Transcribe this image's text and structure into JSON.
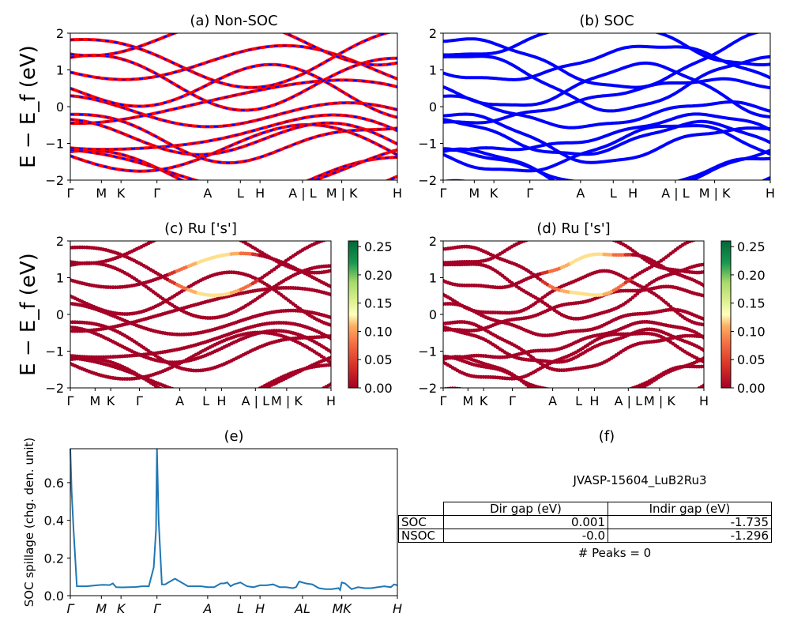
{
  "kpath_labels": [
    "Γ",
    "M",
    "K",
    "Γ",
    "A",
    "L",
    "H",
    "A | L",
    "M | K",
    "H"
  ],
  "kpath_positions": [
    0,
    0.095,
    0.155,
    0.265,
    0.42,
    0.52,
    0.58,
    0.71,
    0.83,
    1.0
  ],
  "panels": [
    {
      "id": "a",
      "title": "(a) Non-SOC",
      "ylabel": "E − E_f (eV)",
      "ylim": [
        -2,
        2
      ],
      "yticks": [
        "−2",
        "−1",
        "0",
        "1",
        "2"
      ]
    },
    {
      "id": "b",
      "title": "(b) SOC",
      "ylim": [
        -2,
        2
      ],
      "yticks": [
        "−2",
        "−1",
        "0",
        "1",
        "2"
      ]
    },
    {
      "id": "c",
      "title": "(c)  Ru ['s']",
      "ylabel": "E − E_f (eV)",
      "ylim": [
        -2,
        2
      ],
      "yticks": [
        "−2",
        "−1",
        "0",
        "1",
        "2"
      ],
      "colorbar": {
        "ticks": [
          "0.00",
          "0.05",
          "0.10",
          "0.15",
          "0.20",
          "0.25"
        ],
        "range": [
          0,
          0.26
        ]
      }
    },
    {
      "id": "d",
      "title": "(d) Ru ['s']",
      "ylim": [
        -2,
        2
      ],
      "yticks": [
        "−2",
        "−1",
        "0",
        "1",
        "2"
      ],
      "colorbar": {
        "ticks": [
          "0.00",
          "0.05",
          "0.10",
          "0.15",
          "0.20",
          "0.25"
        ],
        "range": [
          0,
          0.26
        ]
      }
    }
  ],
  "colors": {
    "nonsoc_line": "#ff0000",
    "nonsoc_dash": "#0000ff",
    "soc_line": "#0000ff",
    "spillage": "#1f77b4"
  },
  "chart_data": [
    {
      "type": "line",
      "id": "e",
      "title": "(e)",
      "ylabel": "SOC spillage (chg. den. unit)",
      "ylim": [
        0,
        0.78
      ],
      "yticks": [
        "0.0",
        "0.2",
        "0.4",
        "0.6"
      ],
      "xticks": [
        "Γ",
        "M",
        "K",
        "Γ",
        "A",
        "L",
        "H",
        "AL",
        "MK",
        "H"
      ],
      "x": [
        0,
        0.004,
        0.01,
        0.02,
        0.05,
        0.08,
        0.1,
        0.12,
        0.13,
        0.14,
        0.16,
        0.2,
        0.22,
        0.24,
        0.255,
        0.262,
        0.265,
        0.27,
        0.28,
        0.29,
        0.3,
        0.32,
        0.36,
        0.4,
        0.42,
        0.44,
        0.46,
        0.47,
        0.48,
        0.49,
        0.5,
        0.52,
        0.54,
        0.56,
        0.58,
        0.6,
        0.62,
        0.64,
        0.66,
        0.68,
        0.69,
        0.7,
        0.72,
        0.74,
        0.76,
        0.78,
        0.8,
        0.82,
        0.825,
        0.83,
        0.84,
        0.86,
        0.88,
        0.9,
        0.92,
        0.94,
        0.96,
        0.98,
        0.99,
        1.0
      ],
      "values": [
        0.78,
        0.55,
        0.35,
        0.05,
        0.05,
        0.055,
        0.058,
        0.056,
        0.065,
        0.045,
        0.044,
        0.046,
        0.05,
        0.05,
        0.15,
        0.35,
        0.78,
        0.4,
        0.06,
        0.06,
        0.07,
        0.09,
        0.05,
        0.05,
        0.045,
        0.045,
        0.065,
        0.065,
        0.07,
        0.05,
        0.06,
        0.07,
        0.05,
        0.045,
        0.055,
        0.055,
        0.06,
        0.045,
        0.045,
        0.04,
        0.045,
        0.075,
        0.065,
        0.06,
        0.04,
        0.035,
        0.035,
        0.04,
        0.03,
        0.07,
        0.065,
        0.035,
        0.045,
        0.04,
        0.04,
        0.045,
        0.05,
        0.045,
        0.06,
        0.055
      ]
    },
    {
      "type": "table",
      "id": "f",
      "title": "(f)",
      "material": "JVASP-15604_LuB2Ru3",
      "columns": [
        "Dir gap (eV)",
        "Indir gap (eV)"
      ],
      "rows": [
        {
          "label": "SOC",
          "dir": "0.001",
          "indir": "-1.735"
        },
        {
          "label": "NSOC",
          "dir": "-0.0",
          "indir": "-1.296"
        }
      ],
      "footer": "# Peaks = 0"
    }
  ]
}
